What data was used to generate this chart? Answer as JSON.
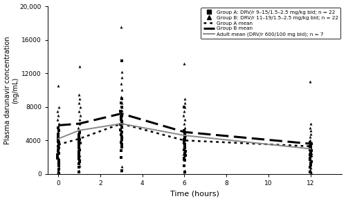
{
  "title": "",
  "xlabel": "Time (hours)",
  "ylabel": "Plasma darunavir concentration\n(ng/mL)",
  "xlim": [
    -0.5,
    13.5
  ],
  "ylim": [
    0,
    20000
  ],
  "yticks": [
    0,
    4000,
    8000,
    12000,
    16000,
    20000
  ],
  "ytick_labels": [
    "0",
    "4000",
    "8000",
    "12000",
    "16000",
    "20,000"
  ],
  "xticks": [
    0,
    2,
    4,
    6,
    8,
    10,
    12
  ],
  "time_points": [
    0,
    1,
    3,
    6,
    12
  ],
  "groupA_scatter": {
    "t0": [
      5500,
      5200,
      4800,
      4500,
      4300,
      4100,
      3900,
      3700,
      3500,
      3300,
      3100,
      2900,
      2700,
      2500,
      2300,
      2100,
      1900,
      1600,
      1300,
      1000,
      600,
      100
    ],
    "t1": [
      5100,
      4900,
      4700,
      4600,
      4500,
      4300,
      4100,
      3900,
      3700,
      3500,
      3300,
      3100,
      2900,
      2700,
      2500,
      2300,
      2100,
      1800,
      1500,
      1200,
      800,
      200
    ],
    "t3": [
      13500,
      9000,
      8500,
      8000,
      7500,
      7000,
      6800,
      6500,
      6200,
      5900,
      5600,
      5300,
      5000,
      4700,
      4400,
      4100,
      3800,
      3500,
      3200,
      2800,
      2000,
      400
    ],
    "t6": [
      8000,
      5200,
      5000,
      4800,
      4600,
      4400,
      4200,
      4100,
      4000,
      3900,
      3700,
      3500,
      3300,
      3100,
      2900,
      2700,
      2500,
      2200,
      1900,
      1600,
      1000,
      200
    ],
    "t12": [
      3800,
      3600,
      3400,
      3300,
      3200,
      3100,
      3000,
      2900,
      2800,
      2700,
      2600,
      2500,
      2400,
      2300,
      2100,
      1900,
      1700,
      1500,
      1300,
      1100,
      800,
      200
    ]
  },
  "groupB_scatter": {
    "t0": [
      10500,
      8000,
      7500,
      7000,
      6500,
      6000,
      5500,
      5000,
      4500,
      4000,
      3500,
      3000,
      2500,
      2000,
      1700,
      1400,
      1100,
      800,
      600,
      400,
      200,
      100
    ],
    "t1": [
      12800,
      9500,
      9000,
      8500,
      8000,
      7500,
      7000,
      6500,
      6000,
      5500,
      5000,
      4600,
      4200,
      3800,
      3400,
      3000,
      2600,
      2200,
      1800,
      1400,
      1000,
      400
    ],
    "t3": [
      17500,
      12200,
      11500,
      10800,
      10000,
      9200,
      8500,
      8000,
      7600,
      7200,
      7000,
      6800,
      6500,
      6200,
      5900,
      5600,
      5300,
      5000,
      4500,
      3800,
      900,
      400
    ],
    "t6": [
      13200,
      9000,
      8500,
      8000,
      7500,
      7000,
      6500,
      6000,
      5500,
      5000,
      4600,
      4200,
      3900,
      3600,
      3300,
      3000,
      2700,
      2400,
      2100,
      1800,
      400,
      200
    ],
    "t12": [
      11000,
      6000,
      5500,
      5200,
      4800,
      4400,
      4000,
      3700,
      3400,
      3100,
      2800,
      2500,
      2200,
      1900,
      1600,
      1300,
      1000,
      700,
      500,
      300,
      200,
      100
    ]
  },
  "groupA_mean": [
    3500,
    4200,
    6000,
    4000,
    3300
  ],
  "groupB_mean": [
    5800,
    6000,
    7200,
    5000,
    3600
  ],
  "adult_mean": [
    4200,
    5200,
    6000,
    4600,
    3000
  ],
  "legend_labels": [
    "Group A: DRV/r 9–15/1.5–2.5 mg/kg bid; n = 22",
    "Group B: DRV/r 11–19/1.5–2.5 mg/kg bid; n = 22",
    "Group A mean",
    "Group B mean",
    "Adult mean (DRV/r 600/100 mg bid); n = 7"
  ],
  "scatter_color": "black",
  "groupA_mean_color": "black",
  "groupB_mean_color": "black",
  "adult_mean_color": "#888888"
}
